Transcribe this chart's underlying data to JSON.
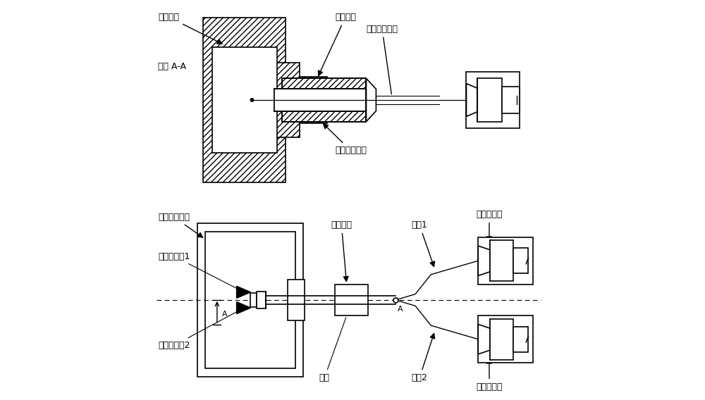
{
  "bg_color": "#ffffff",
  "line_color": "#000000",
  "labels": {
    "jin_shu_qiang_ti": "金属腔体",
    "jian_mian": "剖面 A-A",
    "jin_shu_tao_tong": "金属套筒",
    "er_yuan_zhen_lie": "二元阵列光纤",
    "qian_xi": "铅锡焊料填充",
    "du_jin": "镀金金属管壳",
    "tan_ce1": "探测器芯片1",
    "tan_ce2": "探测器芯片2",
    "A_label": "A",
    "jin_shu_nie": "金属镍管",
    "tao_guan": "套管",
    "guang_xian1": "光纤1",
    "guang_xian2": "光纤2",
    "guang_xian_lian_jie1": "光纤连接器",
    "guang_xian_lian_jie2": "光纤连接器"
  }
}
